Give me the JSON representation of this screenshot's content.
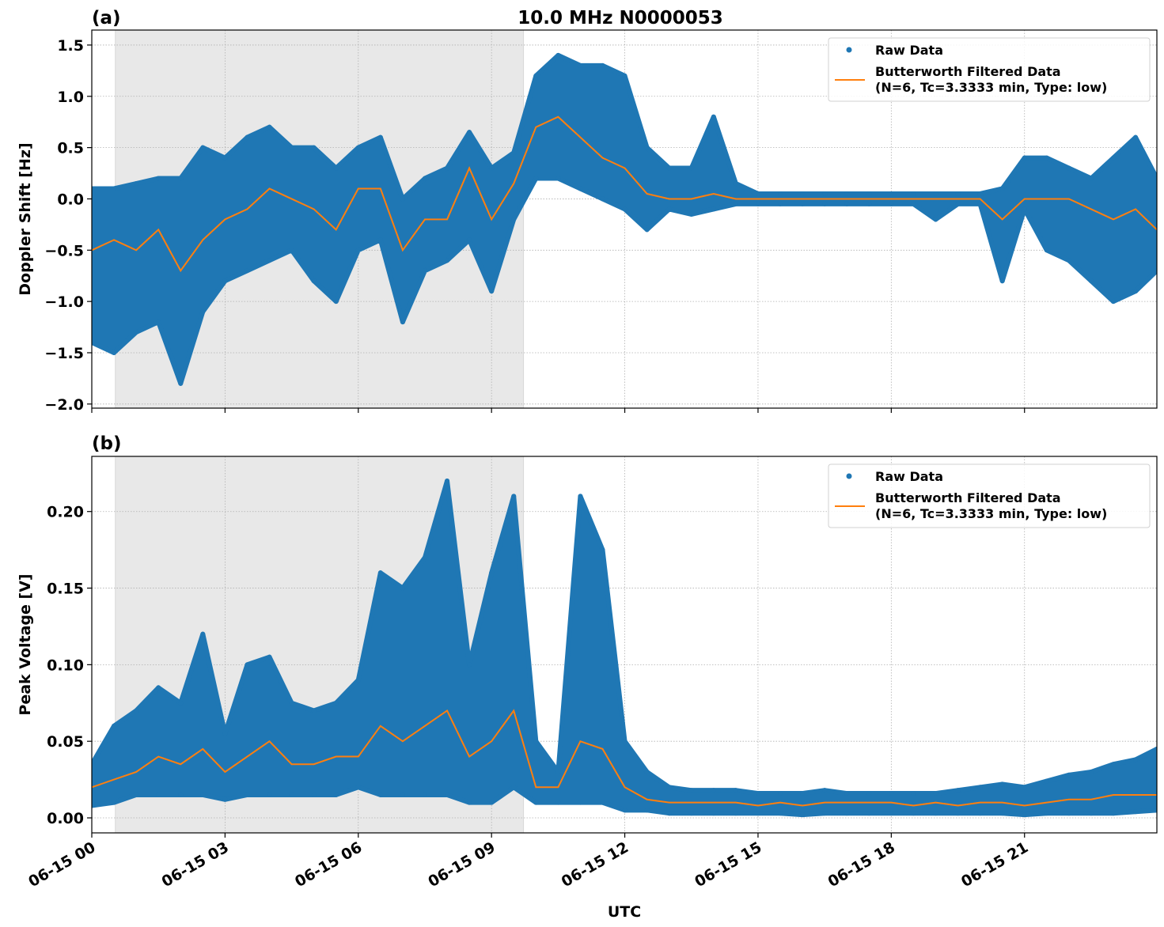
{
  "chart_data": {
    "title": "10.0 MHz N0000053",
    "xlabel": "UTC",
    "x_tick_labels": [
      "06-15 00",
      "06-15 03",
      "06-15 06",
      "06-15 09",
      "06-15 12",
      "06-15 15",
      "06-15 18",
      "06-15 21"
    ],
    "x_ticks_hours": [
      0,
      3,
      6,
      9,
      12,
      15,
      18,
      21
    ],
    "xlim_hours": [
      0,
      23.98
    ],
    "shaded_interval_hours": [
      0.53,
      9.72
    ],
    "grid": true,
    "colors": {
      "raw": "#1f77b4",
      "filtered": "#ff7f0e",
      "shade": "#e8e8e8"
    },
    "panels": [
      {
        "label": "(a)",
        "type": "scatter+line",
        "ylabel": "Doppler Shift [Hz]",
        "ylim": [
          -2.04,
          1.646
        ],
        "y_ticks": [
          -2.0,
          -1.5,
          -1.0,
          -0.5,
          0.0,
          0.5,
          1.0,
          1.5
        ],
        "y_tick_labels": [
          "−2.0",
          "−1.5",
          "−1.0",
          "−0.5",
          "0.0",
          "0.5",
          "1.0",
          "1.5"
        ],
        "legend": {
          "placement": "top-right",
          "entries": [
            "Raw Data",
            "Butterworth Filtered Data",
            "(N=6, Tc=3.3333 min, Type: low)"
          ]
        },
        "x_hours": [
          0,
          0.5,
          1,
          1.5,
          2,
          2.5,
          3,
          3.5,
          4,
          4.5,
          5,
          5.5,
          6,
          6.5,
          7,
          7.5,
          8,
          8.5,
          9,
          9.5,
          10,
          10.5,
          11,
          11.5,
          12,
          12.5,
          13,
          13.5,
          14,
          14.5,
          15,
          15.5,
          16,
          16.5,
          17,
          17.5,
          18,
          18.5,
          19,
          19.5,
          20,
          20.5,
          21,
          21.5,
          22,
          22.5,
          23,
          23.5,
          23.98
        ],
        "filtered": [
          -0.5,
          -0.4,
          -0.5,
          -0.3,
          -0.7,
          -0.4,
          -0.2,
          -0.1,
          0.1,
          0.0,
          -0.1,
          -0.3,
          0.1,
          0.1,
          -0.5,
          -0.2,
          -0.2,
          0.3,
          -0.2,
          0.15,
          0.7,
          0.8,
          0.6,
          0.4,
          0.3,
          0.05,
          0.0,
          0.0,
          0.05,
          0.0,
          0.0,
          0.0,
          0.0,
          0.0,
          0.0,
          0.0,
          0.0,
          0.0,
          0.0,
          0.0,
          0.0,
          -0.2,
          0.0,
          0.0,
          0.0,
          -0.1,
          -0.2,
          -0.1,
          -0.3
        ],
        "raw_low": [
          -1.4,
          -1.5,
          -1.3,
          -1.2,
          -1.8,
          -1.1,
          -0.8,
          -0.7,
          -0.6,
          -0.5,
          -0.8,
          -1.0,
          -0.5,
          -0.4,
          -1.2,
          -0.7,
          -0.6,
          -0.4,
          -0.9,
          -0.2,
          0.2,
          0.2,
          0.1,
          0.0,
          -0.1,
          -0.3,
          -0.1,
          -0.15,
          -0.1,
          -0.05,
          -0.05,
          -0.05,
          -0.05,
          -0.05,
          -0.05,
          -0.05,
          -0.05,
          -0.05,
          -0.2,
          -0.05,
          -0.05,
          -0.8,
          -0.1,
          -0.5,
          -0.6,
          -0.8,
          -1.0,
          -0.9,
          -0.7
        ],
        "raw_high": [
          0.1,
          0.1,
          0.15,
          0.2,
          0.2,
          0.5,
          0.4,
          0.6,
          0.7,
          0.5,
          0.5,
          0.3,
          0.5,
          0.6,
          0.0,
          0.2,
          0.3,
          0.65,
          0.3,
          0.45,
          1.2,
          1.4,
          1.3,
          1.3,
          1.2,
          0.5,
          0.3,
          0.3,
          0.8,
          0.15,
          0.05,
          0.05,
          0.05,
          0.05,
          0.05,
          0.05,
          0.05,
          0.05,
          0.05,
          0.05,
          0.05,
          0.1,
          0.4,
          0.4,
          0.3,
          0.2,
          0.4,
          0.6,
          0.2
        ]
      },
      {
        "label": "(b)",
        "type": "scatter+line",
        "ylabel": "Peak Voltage [V]",
        "ylim": [
          -0.0098,
          0.236
        ],
        "y_ticks": [
          0.0,
          0.05,
          0.1,
          0.15,
          0.2
        ],
        "y_tick_labels": [
          "0.00",
          "0.05",
          "0.10",
          "0.15",
          "0.20"
        ],
        "legend": {
          "placement": "top-right",
          "entries": [
            "Raw Data",
            "Butterworth Filtered Data",
            "(N=6, Tc=3.3333 min, Type: low)"
          ]
        },
        "x_hours": [
          0,
          0.5,
          1,
          1.5,
          2,
          2.5,
          3,
          3.5,
          4,
          4.5,
          5,
          5.5,
          6,
          6.5,
          7,
          7.5,
          8,
          8.5,
          9,
          9.5,
          10,
          10.5,
          11,
          11.5,
          12,
          12.5,
          13,
          13.5,
          14,
          14.5,
          15,
          15.5,
          16,
          16.5,
          17,
          17.5,
          18,
          18.5,
          19,
          19.5,
          20,
          20.5,
          21,
          21.5,
          22,
          22.5,
          23,
          23.5,
          23.98
        ],
        "filtered": [
          0.02,
          0.025,
          0.03,
          0.04,
          0.035,
          0.045,
          0.03,
          0.04,
          0.05,
          0.035,
          0.035,
          0.04,
          0.04,
          0.06,
          0.05,
          0.06,
          0.07,
          0.04,
          0.05,
          0.07,
          0.02,
          0.02,
          0.05,
          0.045,
          0.02,
          0.012,
          0.01,
          0.01,
          0.01,
          0.01,
          0.008,
          0.01,
          0.008,
          0.01,
          0.01,
          0.01,
          0.01,
          0.008,
          0.01,
          0.008,
          0.01,
          0.01,
          0.008,
          0.01,
          0.012,
          0.012,
          0.015,
          0.015,
          0.015
        ],
        "raw_low": [
          0.008,
          0.01,
          0.015,
          0.015,
          0.015,
          0.015,
          0.012,
          0.015,
          0.015,
          0.015,
          0.015,
          0.015,
          0.02,
          0.015,
          0.015,
          0.015,
          0.015,
          0.01,
          0.01,
          0.02,
          0.01,
          0.01,
          0.01,
          0.01,
          0.005,
          0.005,
          0.003,
          0.003,
          0.003,
          0.003,
          0.003,
          0.003,
          0.002,
          0.003,
          0.003,
          0.003,
          0.003,
          0.003,
          0.003,
          0.003,
          0.003,
          0.003,
          0.002,
          0.003,
          0.003,
          0.003,
          0.003,
          0.004,
          0.005
        ],
        "raw_high": [
          0.035,
          0.06,
          0.07,
          0.085,
          0.075,
          0.12,
          0.055,
          0.1,
          0.105,
          0.075,
          0.07,
          0.075,
          0.09,
          0.16,
          0.15,
          0.17,
          0.22,
          0.1,
          0.16,
          0.21,
          0.05,
          0.03,
          0.21,
          0.175,
          0.05,
          0.03,
          0.02,
          0.018,
          0.018,
          0.018,
          0.016,
          0.016,
          0.016,
          0.018,
          0.016,
          0.016,
          0.016,
          0.016,
          0.016,
          0.018,
          0.02,
          0.022,
          0.02,
          0.024,
          0.028,
          0.03,
          0.035,
          0.038,
          0.045
        ]
      }
    ]
  }
}
